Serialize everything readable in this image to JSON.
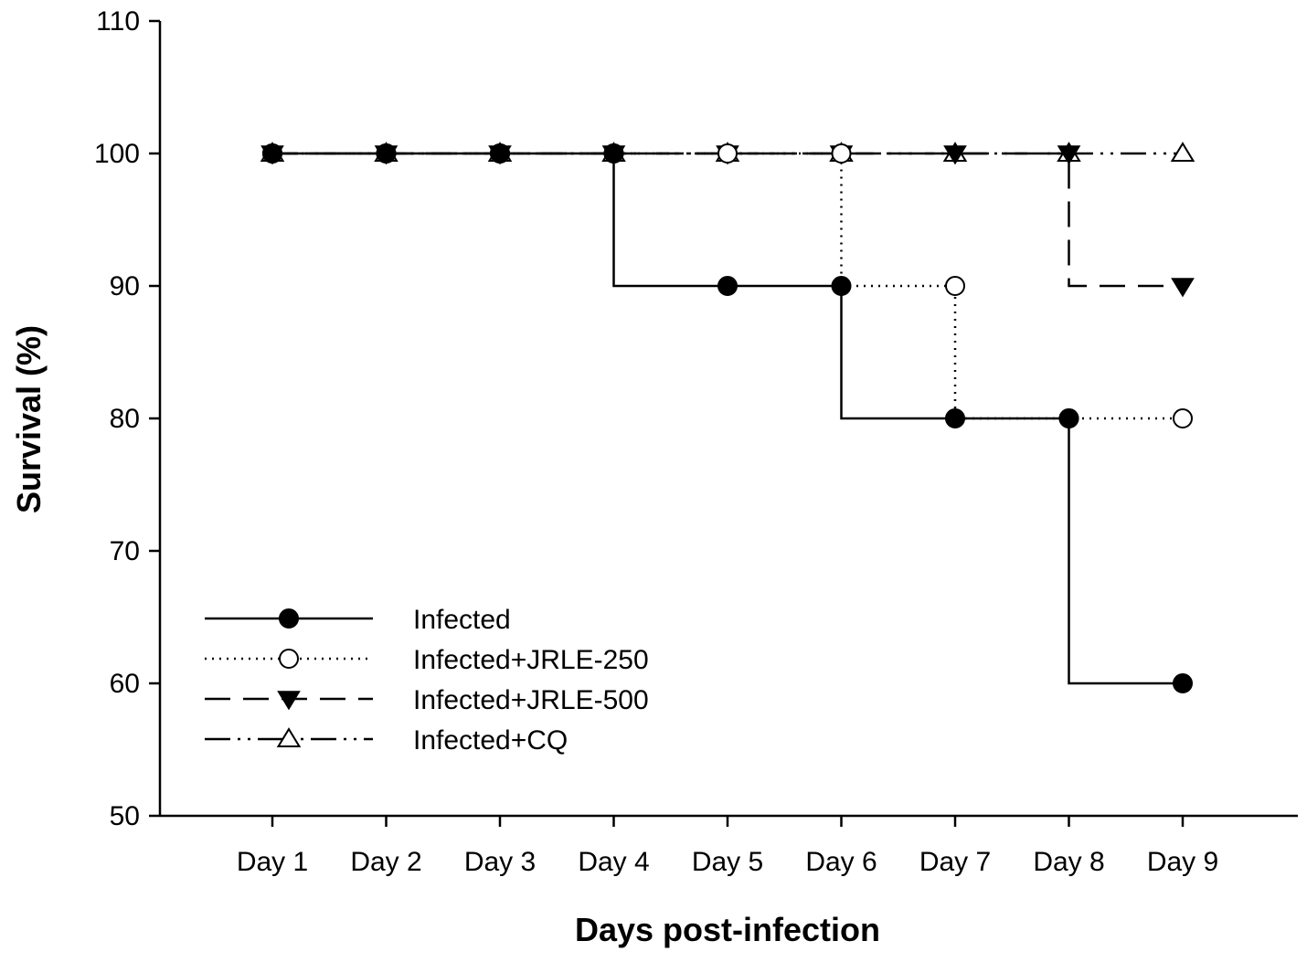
{
  "chart_data": {
    "type": "line",
    "xlabel": "Days post-infection",
    "ylabel": "Survival (%)",
    "categories": [
      "Day 1",
      "Day 2",
      "Day 3",
      "Day 4",
      "Day 5",
      "Day 6",
      "Day 7",
      "Day 8",
      "Day 9"
    ],
    "ylim": [
      50,
      110
    ],
    "yticks": [
      50,
      60,
      70,
      80,
      90,
      100,
      110
    ],
    "step": true,
    "grid": false,
    "legend_position": "lower-left",
    "series": [
      {
        "name": "Infected",
        "values": [
          100,
          100,
          100,
          100,
          90,
          90,
          80,
          80,
          60
        ],
        "marker": "filled-circle",
        "line": "solid",
        "color": "#000000"
      },
      {
        "name": "Infected+JRLE-250",
        "values": [
          100,
          100,
          100,
          100,
          100,
          100,
          90,
          80,
          80
        ],
        "marker": "open-circle",
        "line": "dotted",
        "color": "#000000"
      },
      {
        "name": "Infected+JRLE-500",
        "values": [
          100,
          100,
          100,
          100,
          100,
          100,
          100,
          100,
          90
        ],
        "marker": "filled-triangle-down",
        "line": "dashed",
        "color": "#000000"
      },
      {
        "name": "Infected+CQ",
        "values": [
          100,
          100,
          100,
          100,
          100,
          100,
          100,
          100,
          100
        ],
        "marker": "open-triangle-up",
        "line": "dash-dot-dot",
        "color": "#000000"
      }
    ]
  }
}
